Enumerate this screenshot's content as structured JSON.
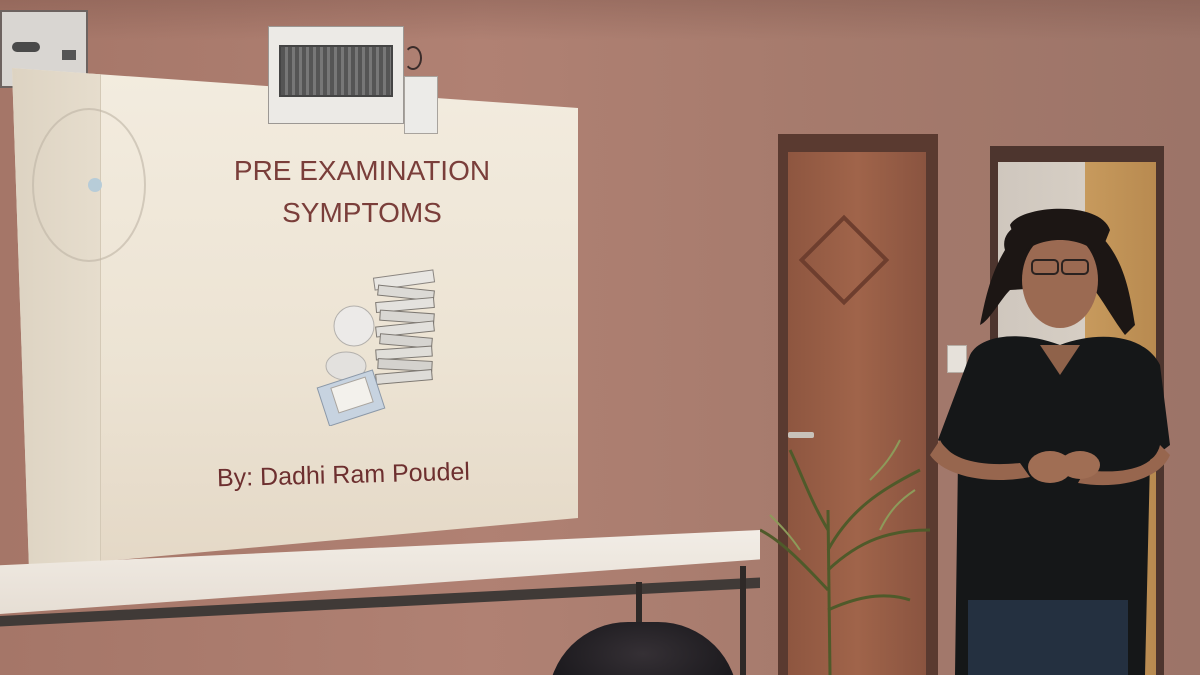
{
  "slide": {
    "title_line1": "PRE EXAMINATION",
    "title_line2": "SYMPTOMS",
    "author": "By: Dadhi Ram Poudel"
  },
  "colors": {
    "wall": "#a57668",
    "slide_background": "#f0e8da",
    "slide_text": "#7a3e3a",
    "door": "#9a5e46"
  }
}
